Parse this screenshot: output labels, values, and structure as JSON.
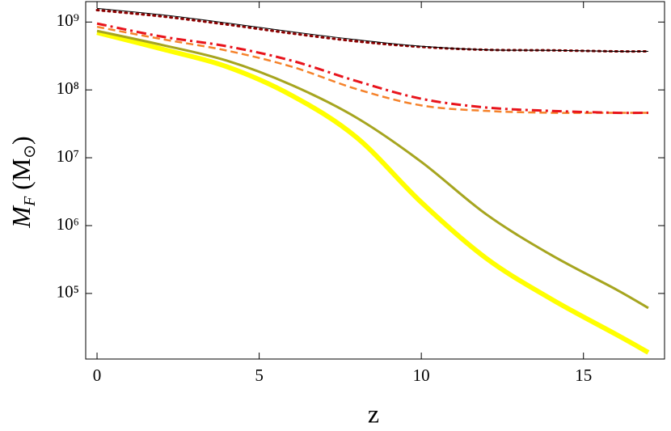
{
  "chart_data": {
    "type": "line",
    "x_label": "z",
    "y_label": [
      "M",
      "F",
      " (M",
      "⊙",
      ")"
    ],
    "x": [
      0,
      2,
      4,
      6,
      8,
      10,
      12,
      14,
      16,
      17
    ],
    "series": [
      {
        "color": "#000000",
        "style": "solid",
        "width": 1,
        "values": [
          1590000000,
          1280000000,
          970000000,
          720000000,
          550000000,
          440000000,
          390000000,
          383000000,
          370000000,
          370000000
        ]
      },
      {
        "color": "#8b0000",
        "style": "dotted",
        "width": 3,
        "values": [
          1500000000,
          1210000000,
          920000000,
          680000000,
          520000000,
          430000000,
          390000000,
          383000000,
          370000000,
          370000000
        ]
      },
      {
        "color": "#e8141c",
        "style": "dashdot",
        "width": 3,
        "values": [
          950000000,
          610000000,
          440000000,
          270000000,
          135000000,
          74000000,
          55000000,
          49000000,
          46000000,
          46000000
        ]
      },
      {
        "color": "#f5822a",
        "style": "dashed",
        "width": 2.5,
        "values": [
          850000000,
          560000000,
          380000000,
          220000000,
          103000000,
          59000000,
          49000000,
          46000000,
          46000000,
          46000000
        ]
      },
      {
        "color": "#a6a51f",
        "style": "solid",
        "width": 3,
        "values": [
          740000000,
          460000000,
          270000000,
          118000000,
          39000000,
          8700000,
          1470000,
          370000,
          115000,
          61000
        ]
      },
      {
        "color": "#ffff00",
        "style": "solid",
        "width": 6,
        "values": [
          700000000,
          400000000,
          220000000,
          83000000,
          20000000,
          2200000,
          330000,
          83000,
          25000,
          13500
        ]
      }
    ],
    "xlim": [
      -0.35,
      17.5
    ],
    "ylim": [
      10800,
      2000000000
    ],
    "log_y": true,
    "xticks": [
      0,
      5,
      10,
      15
    ],
    "yticks": [
      {
        "value": 100000,
        "label": "10⁵"
      },
      {
        "value": 1000000,
        "label": "10⁶"
      },
      {
        "value": 10000000,
        "label": "10⁷"
      },
      {
        "value": 100000000,
        "label": "10⁸"
      },
      {
        "value": 1000000000,
        "label": "10⁹"
      }
    ]
  }
}
